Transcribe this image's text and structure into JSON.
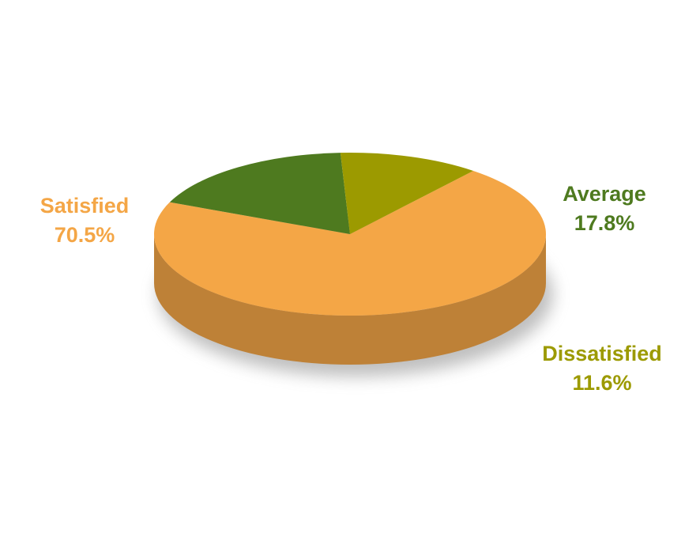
{
  "chart_data": {
    "type": "pie",
    "categories": [
      "Satisfied",
      "Average",
      "Dissatisfied"
    ],
    "values": [
      70.5,
      17.8,
      11.6
    ],
    "value_labels": [
      "70.5%",
      "17.8%",
      "11.6%"
    ],
    "colors": [
      "#f4a646",
      "#4e7a1f",
      "#9c9a00"
    ]
  }
}
